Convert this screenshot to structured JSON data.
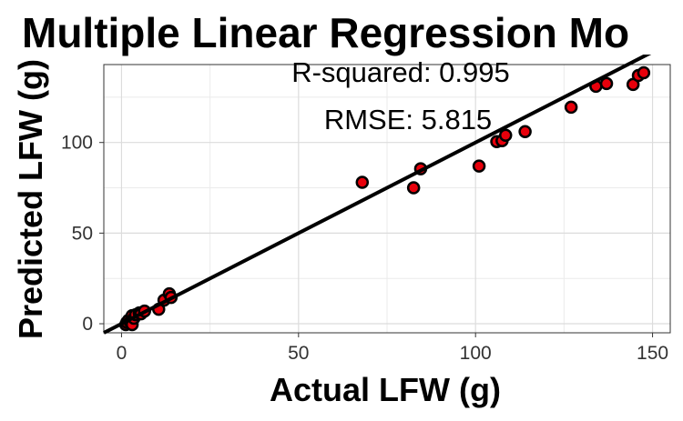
{
  "chart_data": {
    "type": "scatter",
    "title": "Multiple Linear Regression Mo",
    "xlabel": "Actual LFW (g)",
    "ylabel": "Predicted LFW (g)",
    "xlim": [
      -5,
      155
    ],
    "ylim": [
      -5,
      143
    ],
    "x_ticks": [
      0,
      50,
      100,
      150
    ],
    "y_ticks": [
      0,
      50,
      100
    ],
    "grid": true,
    "annotations": [
      "R-squared:  0.995",
      "RMSE:  5.815"
    ],
    "fit_line": {
      "intercept": 0,
      "slope": 1.0
    },
    "point_color": "#e8000b",
    "line_color": "#000000",
    "points": [
      {
        "x": 1.2,
        "y": -0.5
      },
      {
        "x": 1.5,
        "y": 0.8
      },
      {
        "x": 2.0,
        "y": 2.0
      },
      {
        "x": 2.5,
        "y": 1.0
      },
      {
        "x": 3.0,
        "y": -0.5
      },
      {
        "x": 3.0,
        "y": 4.5
      },
      {
        "x": 3.5,
        "y": 3.0
      },
      {
        "x": 4.0,
        "y": 5.0
      },
      {
        "x": 5.0,
        "y": 6.0
      },
      {
        "x": 5.5,
        "y": 5.5
      },
      {
        "x": 6.5,
        "y": 7.0
      },
      {
        "x": 10.5,
        "y": 8.0
      },
      {
        "x": 12.0,
        "y": 13.0
      },
      {
        "x": 13.5,
        "y": 16.5
      },
      {
        "x": 14.0,
        "y": 14.5
      },
      {
        "x": 68.0,
        "y": 78.0
      },
      {
        "x": 82.5,
        "y": 75.0
      },
      {
        "x": 84.5,
        "y": 85.5
      },
      {
        "x": 101.0,
        "y": 87.0
      },
      {
        "x": 106.0,
        "y": 100.5
      },
      {
        "x": 107.5,
        "y": 101.0
      },
      {
        "x": 108.5,
        "y": 104.0
      },
      {
        "x": 114.0,
        "y": 106.0
      },
      {
        "x": 127.0,
        "y": 119.5
      },
      {
        "x": 134.0,
        "y": 131.0
      },
      {
        "x": 137.0,
        "y": 132.5
      },
      {
        "x": 144.5,
        "y": 132.0
      },
      {
        "x": 146.0,
        "y": 137.0
      },
      {
        "x": 147.5,
        "y": 138.5
      }
    ]
  }
}
